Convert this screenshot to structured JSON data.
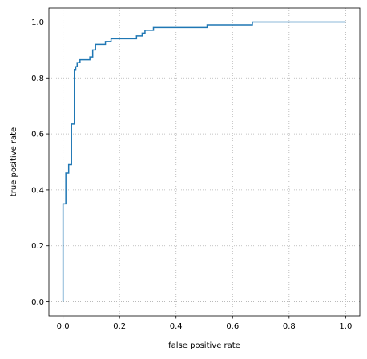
{
  "chart_data": {
    "type": "line",
    "color": "#1f77b4",
    "grid": true,
    "xlabel": "false positive rate",
    "ylabel": "true positive rate",
    "xlim": [
      -0.05,
      1.05
    ],
    "ylim": [
      -0.05,
      1.05
    ],
    "xticks": [
      {
        "value": 0,
        "label": "0.0"
      },
      0.2,
      0.4,
      0.6,
      0.8,
      {
        "value": 1,
        "label": "1.0"
      }
    ],
    "yticks": [
      {
        "value": 0,
        "label": "0.0"
      },
      0.2,
      0.4,
      0.6,
      0.8,
      {
        "value": 1,
        "label": "1.0"
      }
    ],
    "x": [
      0,
      0,
      0.01,
      0.01,
      0.02,
      0.02,
      0.03,
      0.03,
      0.04,
      0.04,
      0.045,
      0.045,
      0.05,
      0.05,
      0.06,
      0.06,
      0.095,
      0.095,
      0.105,
      0.105,
      0.115,
      0.115,
      0.15,
      0.15,
      0.17,
      0.17,
      0.26,
      0.26,
      0.28,
      0.28,
      0.29,
      0.29,
      0.32,
      0.32,
      0.51,
      0.51,
      0.67,
      0.67,
      1.0
    ],
    "values": [
      0,
      0.35,
      0.35,
      0.46,
      0.46,
      0.49,
      0.49,
      0.635,
      0.635,
      0.83,
      0.83,
      0.84,
      0.84,
      0.855,
      0.855,
      0.865,
      0.865,
      0.875,
      0.875,
      0.9,
      0.9,
      0.92,
      0.92,
      0.93,
      0.93,
      0.94,
      0.94,
      0.95,
      0.95,
      0.96,
      0.96,
      0.97,
      0.97,
      0.98,
      0.98,
      0.99,
      0.99,
      1.0,
      1.0
    ]
  }
}
